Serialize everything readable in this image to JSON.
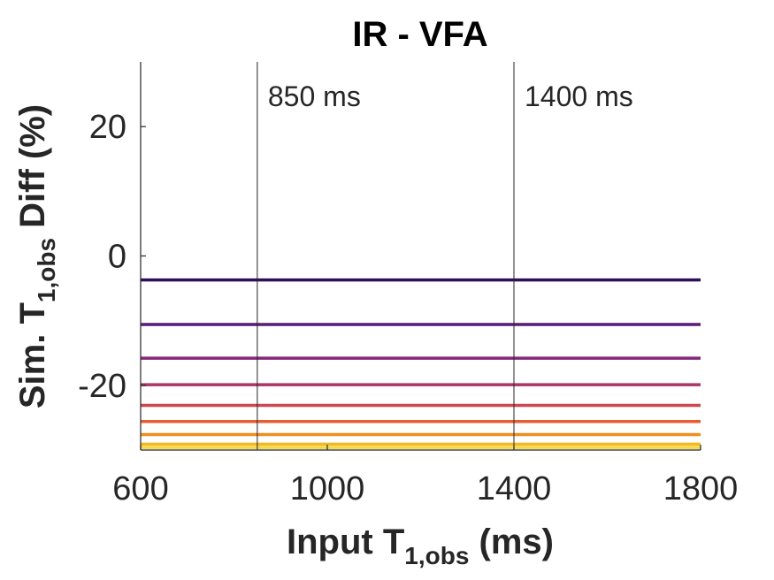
{
  "chart_data": {
    "type": "line",
    "title": "IR - VFA",
    "xlabel": {
      "main": "Input T",
      "sub": "1,obs",
      "tail": " (ms)"
    },
    "ylabel": {
      "main": "Sim. T",
      "sub": "1,obs",
      "tail": " Diff (%)"
    },
    "xlim": [
      600,
      1800
    ],
    "ylim": [
      -30,
      30
    ],
    "xticks": [
      600,
      1000,
      1400,
      1800
    ],
    "xtick_labels": [
      "600",
      "1000",
      "1400",
      "1800"
    ],
    "yticks": [
      20,
      0,
      -20
    ],
    "ytick_labels": [
      "20",
      "0",
      "-20"
    ],
    "grid": false,
    "reference_lines": [
      {
        "x": 850,
        "label": "850 ms"
      },
      {
        "x": 1400,
        "label": "1400 ms"
      }
    ],
    "series": [
      {
        "values": [
          -3.7,
          -3.7
        ],
        "color": "#2d0f5a"
      },
      {
        "values": [
          -10.6,
          -10.6
        ],
        "color": "#5a1a7a"
      },
      {
        "values": [
          -15.8,
          -15.8
        ],
        "color": "#86267a"
      },
      {
        "values": [
          -19.9,
          -19.9
        ],
        "color": "#ad3567"
      },
      {
        "values": [
          -23.1,
          -23.1
        ],
        "color": "#cf4650"
      },
      {
        "values": [
          -25.6,
          -25.6
        ],
        "color": "#e55f33"
      },
      {
        "values": [
          -27.6,
          -27.6
        ],
        "color": "#f18d1c"
      },
      {
        "values": [
          -29.1,
          -29.1
        ],
        "color": "#f5b722"
      },
      {
        "values": [
          -29.6,
          -29.6
        ],
        "color": "#f3d847"
      }
    ],
    "x": [
      600,
      1800
    ]
  }
}
